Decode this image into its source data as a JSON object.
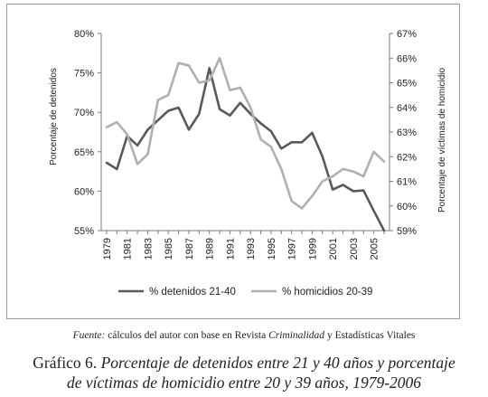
{
  "chart_data": {
    "type": "line",
    "x": [
      1979,
      1980,
      1981,
      1982,
      1983,
      1984,
      1985,
      1986,
      1987,
      1988,
      1989,
      1990,
      1991,
      1992,
      1993,
      1994,
      1995,
      1996,
      1997,
      1998,
      1999,
      2000,
      2001,
      2002,
      2003,
      2004,
      2005,
      2006
    ],
    "x_tick_labels": [
      "1979",
      "1981",
      "1983",
      "1985",
      "1987",
      "1989",
      "1991",
      "1993",
      "1995",
      "1997",
      "1999",
      "2001",
      "2003",
      "2005"
    ],
    "ylabel_left": "Porcentaje de detenidos",
    "ylabel_right": "Porcentaje de víctimas de homicidio",
    "ylim_left": [
      55,
      80
    ],
    "ylim_right": [
      59,
      67
    ],
    "left_tick_labels": [
      "55%",
      "60%",
      "65%",
      "70%",
      "75%",
      "80%"
    ],
    "right_tick_labels": [
      "59%",
      "60%",
      "61%",
      "62%",
      "63%",
      "64%",
      "65%",
      "66%",
      "67%"
    ],
    "grid": false,
    "legend_position": "bottom",
    "series": [
      {
        "name": "% detenidos 21-40",
        "axis": "left",
        "color": "#595959",
        "values": [
          63.6,
          62.8,
          67.0,
          65.8,
          67.8,
          69.0,
          70.2,
          70.6,
          67.8,
          69.8,
          75.6,
          70.4,
          69.6,
          71.2,
          69.8,
          68.6,
          67.6,
          65.4,
          66.2,
          66.2,
          67.4,
          64.4,
          60.2,
          60.8,
          60.0,
          60.1,
          57.5,
          55.0
        ]
      },
      {
        "name": "% homicidios 20-39",
        "axis": "right",
        "color": "#b0b0b0",
        "values": [
          63.2,
          63.4,
          62.9,
          61.7,
          62.1,
          64.3,
          64.5,
          65.8,
          65.7,
          65.0,
          65.1,
          66.0,
          64.7,
          64.8,
          64.0,
          62.7,
          62.4,
          61.5,
          60.2,
          59.9,
          60.4,
          61.0,
          61.2,
          61.5,
          61.4,
          61.2,
          62.2,
          61.8
        ]
      }
    ]
  },
  "source": {
    "prefix": "Fuente:",
    "part1": " cálculos del autor con base en Revista ",
    "italic_part": "Criminalidad",
    "part2": " y Estadísticas Vitales"
  },
  "caption": {
    "prefix": "Gráfico 6. ",
    "line1": "Porcentaje de detenidos entre 21 y 40 años y porcentaje",
    "line2": "de víctimas de homicidio entre 20 y 39 años, 1979-2006"
  }
}
